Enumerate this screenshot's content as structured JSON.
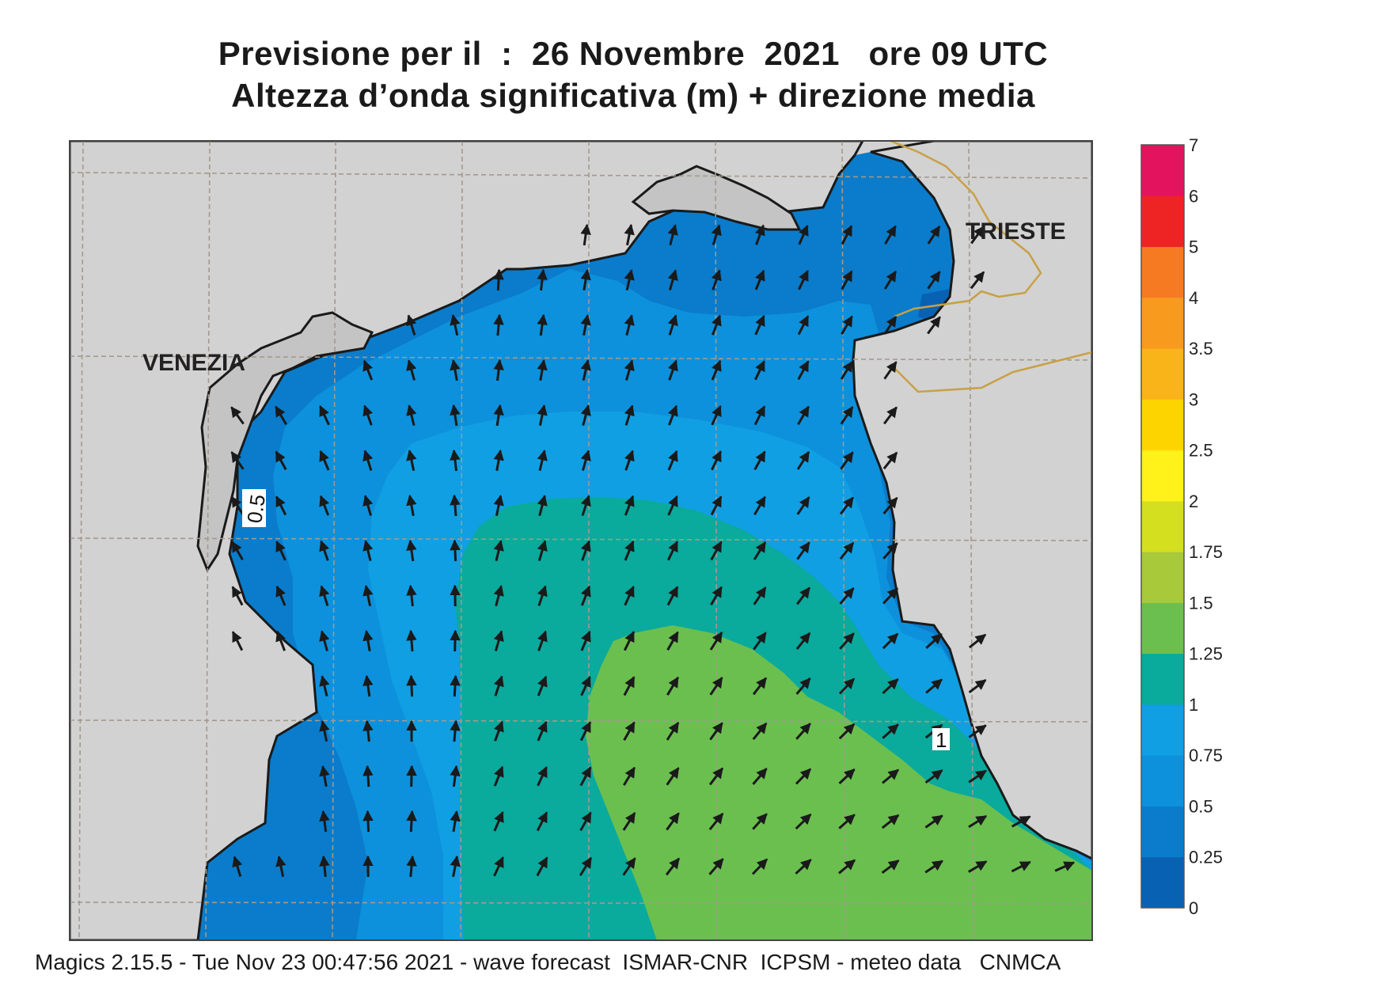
{
  "header": {
    "line1": "Previsione per il  :  26 Novembre  2021   ore 09 UTC",
    "line2": "Altezza d’onda significativa (m) + direzione media"
  },
  "cities": [
    {
      "name": "VENEZIA"
    },
    {
      "name": "TRIESTE"
    }
  ],
  "contour_labels": [
    "0.5",
    "1"
  ],
  "legend": {
    "ticks": [
      "0",
      "0.25",
      "0.5",
      "0.75",
      "1",
      "1.25",
      "1.5",
      "1.75",
      "2",
      "2.5",
      "3",
      "3.5",
      "4",
      "5",
      "6",
      "7"
    ],
    "colors": [
      "#0861b3",
      "#0a7ccb",
      "#0d91dc",
      "#109fe3",
      "#0aaa9d",
      "#6bbf4f",
      "#a8c93a",
      "#d4df20",
      "#fff11a",
      "#fdd400",
      "#f9b419",
      "#f89a1d",
      "#f57a22",
      "#ee2323",
      "#e4135d"
    ]
  },
  "map_colors": {
    "land": "#d2d2d2",
    "band_0_25": "#0a7ccb",
    "band_0_5": "#0d91dc",
    "band_0_75": "#109fe3",
    "band_1": "#0aaa9d",
    "band_1_25": "#6bbf4f",
    "band_0_deep": "#0861b3",
    "grid": "#a39a8a",
    "border": "#c8a045"
  },
  "footer": {
    "text": "Magics 2.15.5 - Tue Nov 23 00:47:56 2021 - wave forecast  ISMAR-CNR  ICPSM - meteo data   CNMCA"
  }
}
